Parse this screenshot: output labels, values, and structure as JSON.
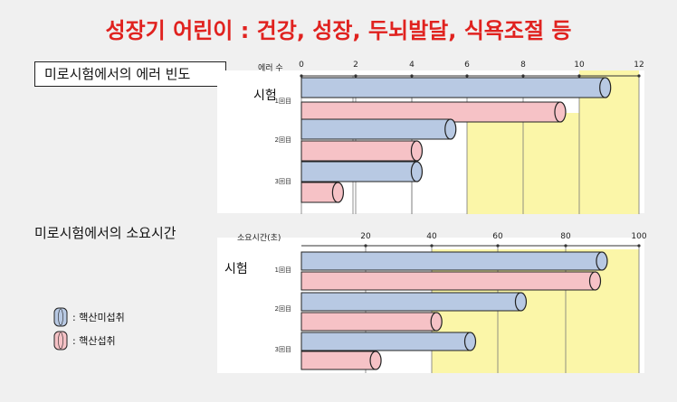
{
  "title": "성장기 어린이 : 건강, 성장, 두뇌발달, 식욕조절 등",
  "colors": {
    "group_a": "#b8c9e3",
    "group_b": "#f6c2c6",
    "highlight": "#fbf6a8",
    "title": "#e0221f"
  },
  "chart_data": [
    {
      "type": "bar",
      "orientation": "horizontal",
      "title": "미로시험에서의 에러 빈도",
      "axis_label": "에러 수",
      "row_group_label": "시험",
      "categories": [
        "1回目",
        "2回目",
        "3回目"
      ],
      "series": [
        {
          "name": "핵산미섭취",
          "values": [
            10.8,
            5.3,
            4.1
          ]
        },
        {
          "name": "핵산섭취",
          "values": [
            9.2,
            4.1,
            1.3
          ]
        }
      ],
      "xlim": [
        0,
        12
      ],
      "xticks": [
        "0",
        "2",
        "4",
        "6",
        "8",
        "10",
        "12"
      ]
    },
    {
      "type": "bar",
      "orientation": "horizontal",
      "title": "미로시험에서의 소요시간",
      "axis_label": "소요시간(초)",
      "row_group_label": "시험",
      "categories": [
        "1回目",
        "2回目",
        "3回目"
      ],
      "series": [
        {
          "name": "핵산미섭취",
          "values": [
            89,
            65,
            50
          ]
        },
        {
          "name": "핵산섭취",
          "values": [
            87,
            40,
            22
          ]
        }
      ],
      "xlim": [
        0,
        100
      ],
      "xticks": [
        "20",
        "40",
        "60",
        "80",
        "100"
      ]
    }
  ],
  "legend": [
    {
      "label": ": 핵산미섭취"
    },
    {
      "label": ": 핵산섭취"
    }
  ]
}
